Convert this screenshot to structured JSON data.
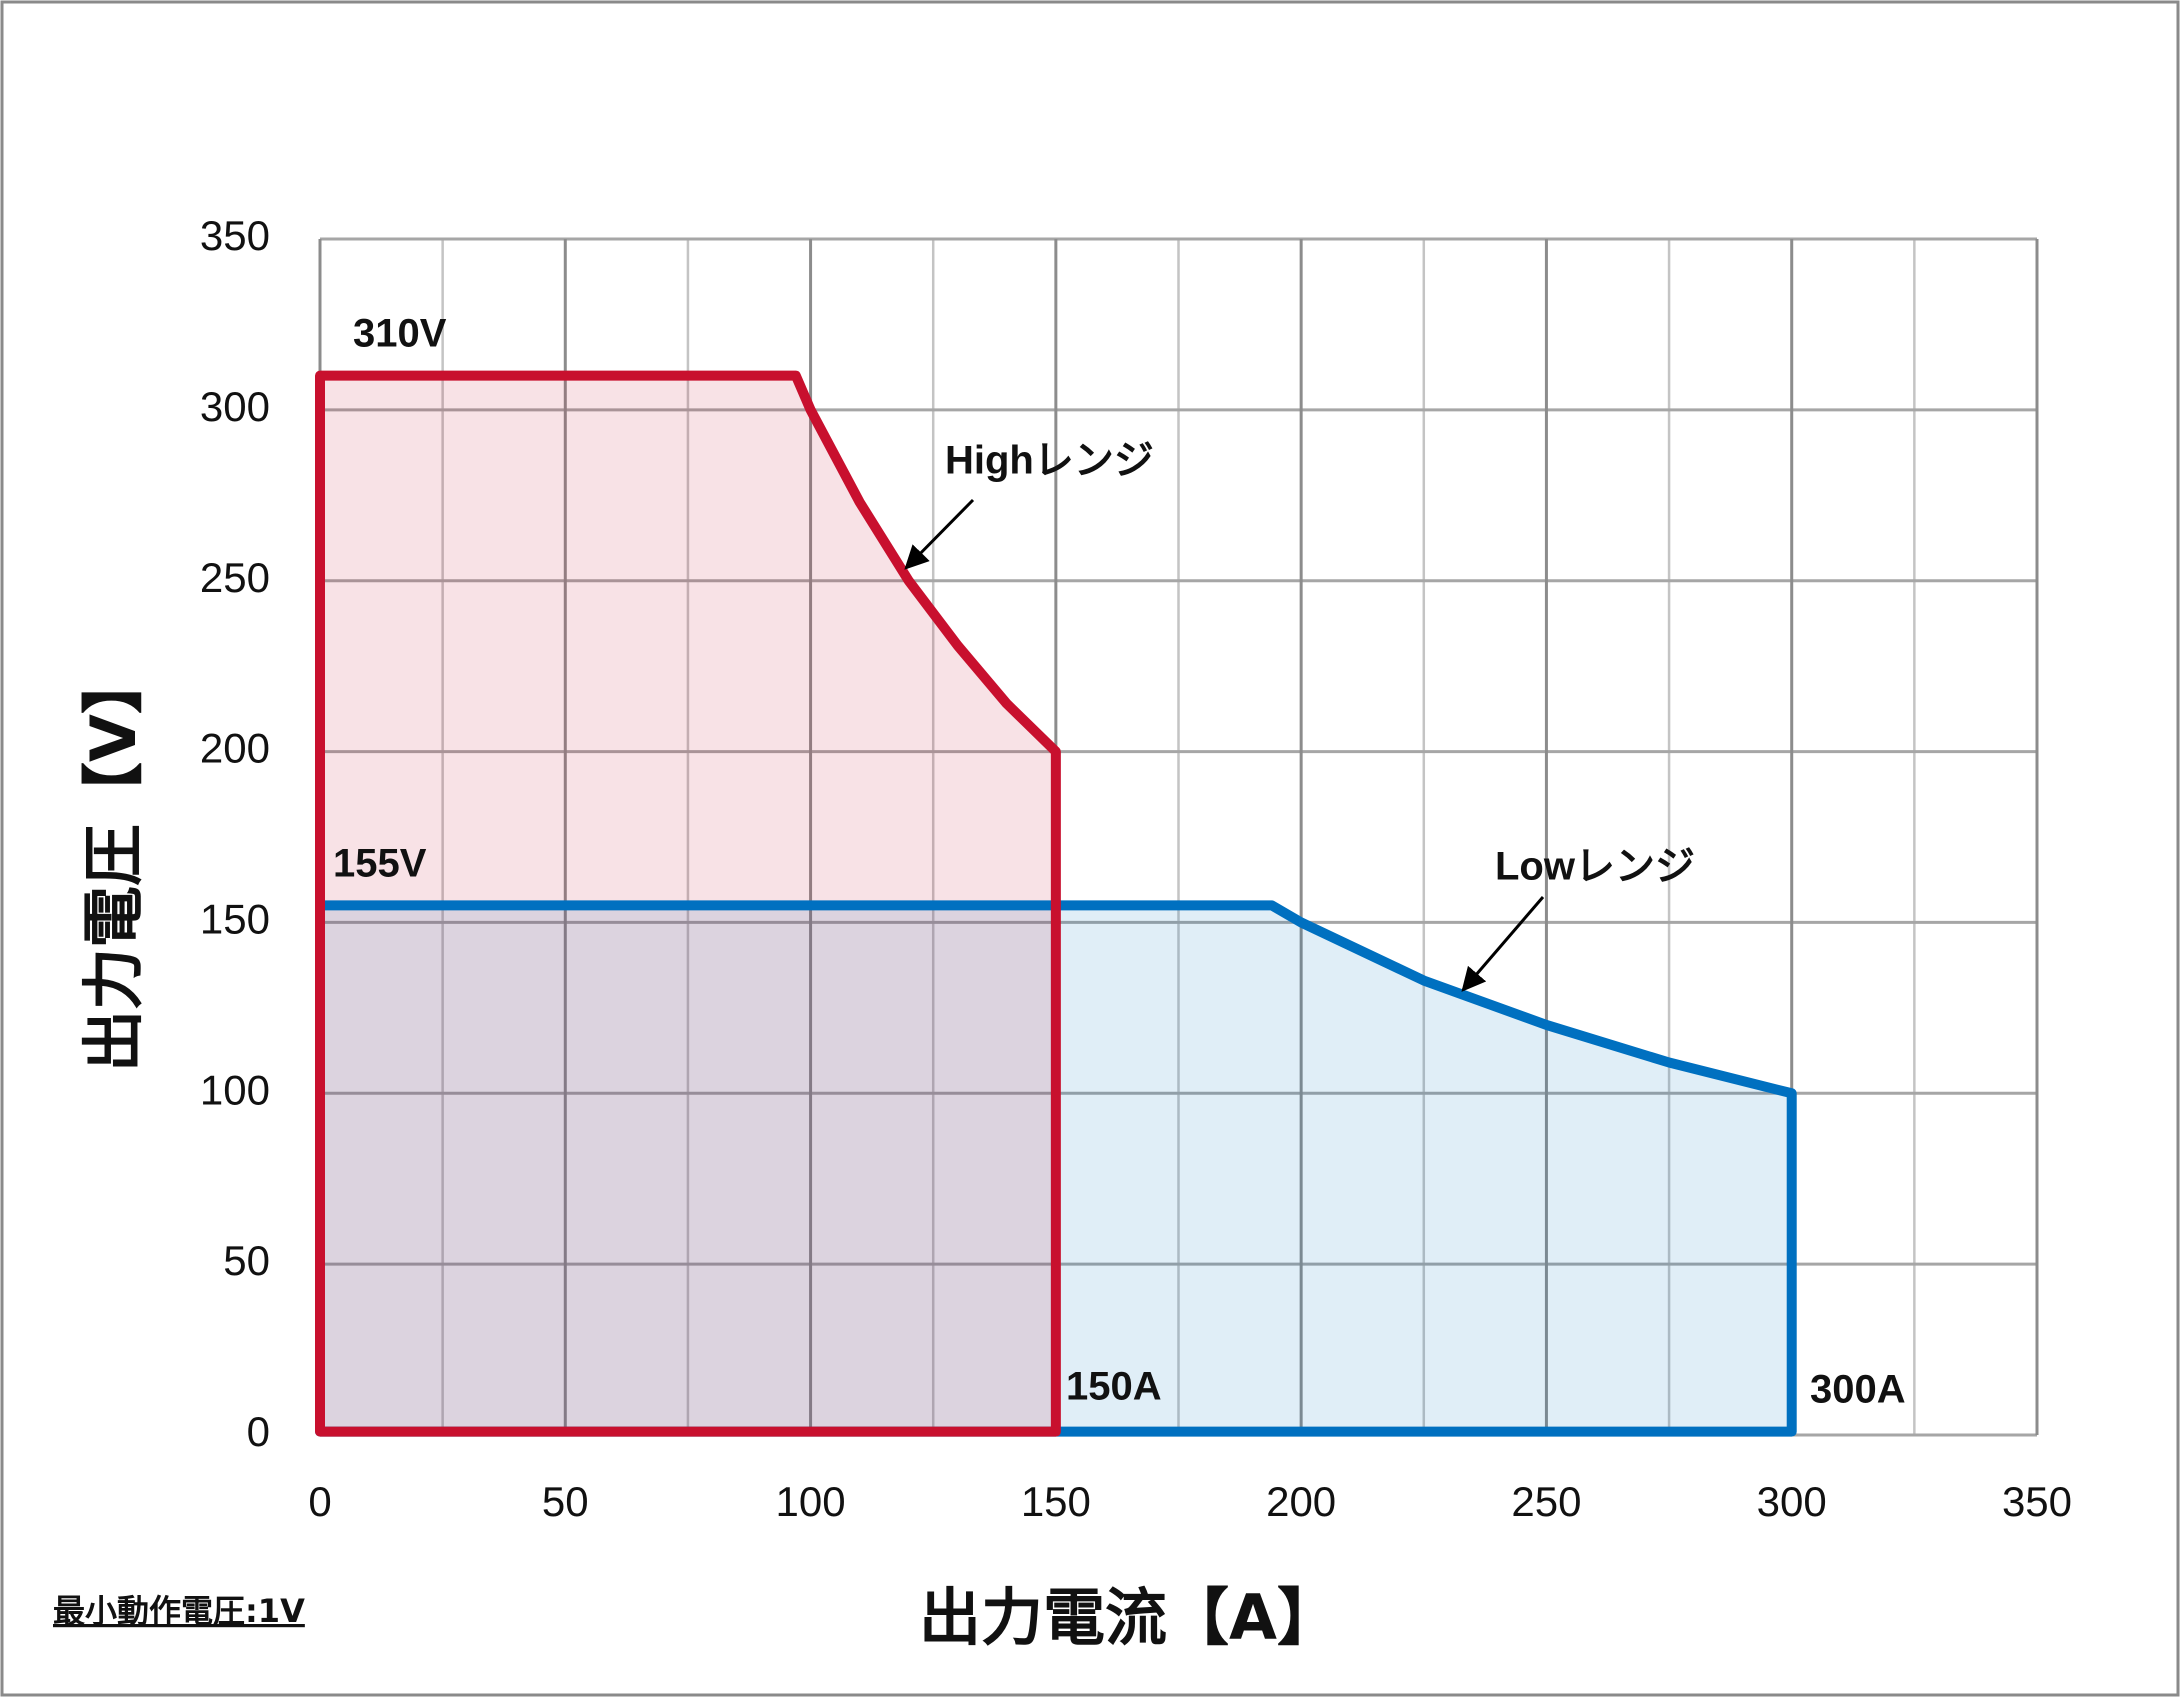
{
  "chart_data": {
    "type": "line",
    "x_label": "出力電流【A】",
    "y_label": "出力電圧【V】",
    "note": "最小動作電圧:1V",
    "xlim": [
      0,
      350
    ],
    "ylim": [
      0,
      350
    ],
    "xticks": [
      0,
      50,
      100,
      150,
      200,
      250,
      300,
      350
    ],
    "x_minor_grid": [
      25,
      75,
      125,
      175,
      225,
      275,
      325
    ],
    "yticks": [
      0,
      50,
      100,
      150,
      200,
      250,
      300,
      350
    ],
    "grid": true,
    "series": [
      {
        "name": "Lowレンジ",
        "color": "#0070c0",
        "x": [
          0,
          0,
          194,
          200,
          225,
          250,
          275,
          300,
          300
        ],
        "values": [
          1,
          155,
          155,
          150,
          133,
          120,
          109,
          100,
          1
        ]
      },
      {
        "name": "Highレンジ",
        "color": "#c8102e",
        "x": [
          0,
          0,
          97,
          100,
          110,
          120,
          130,
          140,
          150,
          150
        ],
        "values": [
          1,
          310,
          310,
          300,
          273,
          250,
          231,
          214,
          200,
          1
        ]
      }
    ],
    "annotations": [
      "310V",
      "155V",
      "150A",
      "300A"
    ]
  }
}
